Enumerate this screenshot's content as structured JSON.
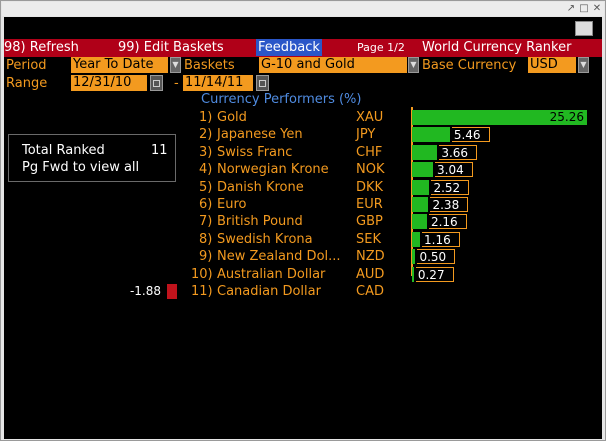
{
  "window": {
    "controls": [
      "↗",
      "□",
      "✕"
    ]
  },
  "toolbar": {
    "refresh": "98) Refresh",
    "edit_baskets": "99) Edit Baskets",
    "feedback": "Feedback",
    "page": "Page 1/2",
    "title": "World Currency Ranker"
  },
  "controls": {
    "period_label": "Period",
    "period_value": "Year To Date",
    "baskets_label": "Baskets",
    "baskets_value": "G-10 and Gold",
    "base_label": "Base Currency",
    "base_value": "USD",
    "range_label": "Range",
    "range_start": "12/31/10",
    "range_dash": "-",
    "range_end": "11/14/11"
  },
  "summary": {
    "total_label": "Total Ranked",
    "total_value": "11",
    "hint": "Pg Fwd to view all"
  },
  "chart_data": {
    "type": "bar",
    "title": "Currency Performers (%)",
    "rows": [
      {
        "rank": "1)",
        "name": "Gold",
        "code": "XAU",
        "value": 25.26,
        "label": "25.26"
      },
      {
        "rank": "2)",
        "name": "Japanese Yen",
        "code": "JPY",
        "value": 5.46,
        "label": "5.46"
      },
      {
        "rank": "3)",
        "name": "Swiss Franc",
        "code": "CHF",
        "value": 3.66,
        "label": "3.66"
      },
      {
        "rank": "4)",
        "name": "Norwegian Krone",
        "code": "NOK",
        "value": 3.04,
        "label": "3.04"
      },
      {
        "rank": "5)",
        "name": "Danish Krone",
        "code": "DKK",
        "value": 2.52,
        "label": "2.52"
      },
      {
        "rank": "6)",
        "name": "Euro",
        "code": "EUR",
        "value": 2.38,
        "label": "2.38"
      },
      {
        "rank": "7)",
        "name": "British Pound",
        "code": "GBP",
        "value": 2.16,
        "label": "2.16"
      },
      {
        "rank": "8)",
        "name": "Swedish Krona",
        "code": "SEK",
        "value": 1.16,
        "label": "1.16"
      },
      {
        "rank": "9)",
        "name": "New Zealand Dol...",
        "code": "NZD",
        "value": 0.5,
        "label": "0.50"
      },
      {
        "rank": "10)",
        "name": "Australian Dollar",
        "code": "AUD",
        "value": 0.27,
        "label": "0.27"
      },
      {
        "rank": "11)",
        "name": "Canadian Dollar",
        "code": "CAD",
        "value": -1.88,
        "label": "-1.88"
      }
    ],
    "colors": {
      "positive": "#21b821",
      "negative": "#c0131c",
      "axis": "#f39a1f"
    }
  }
}
